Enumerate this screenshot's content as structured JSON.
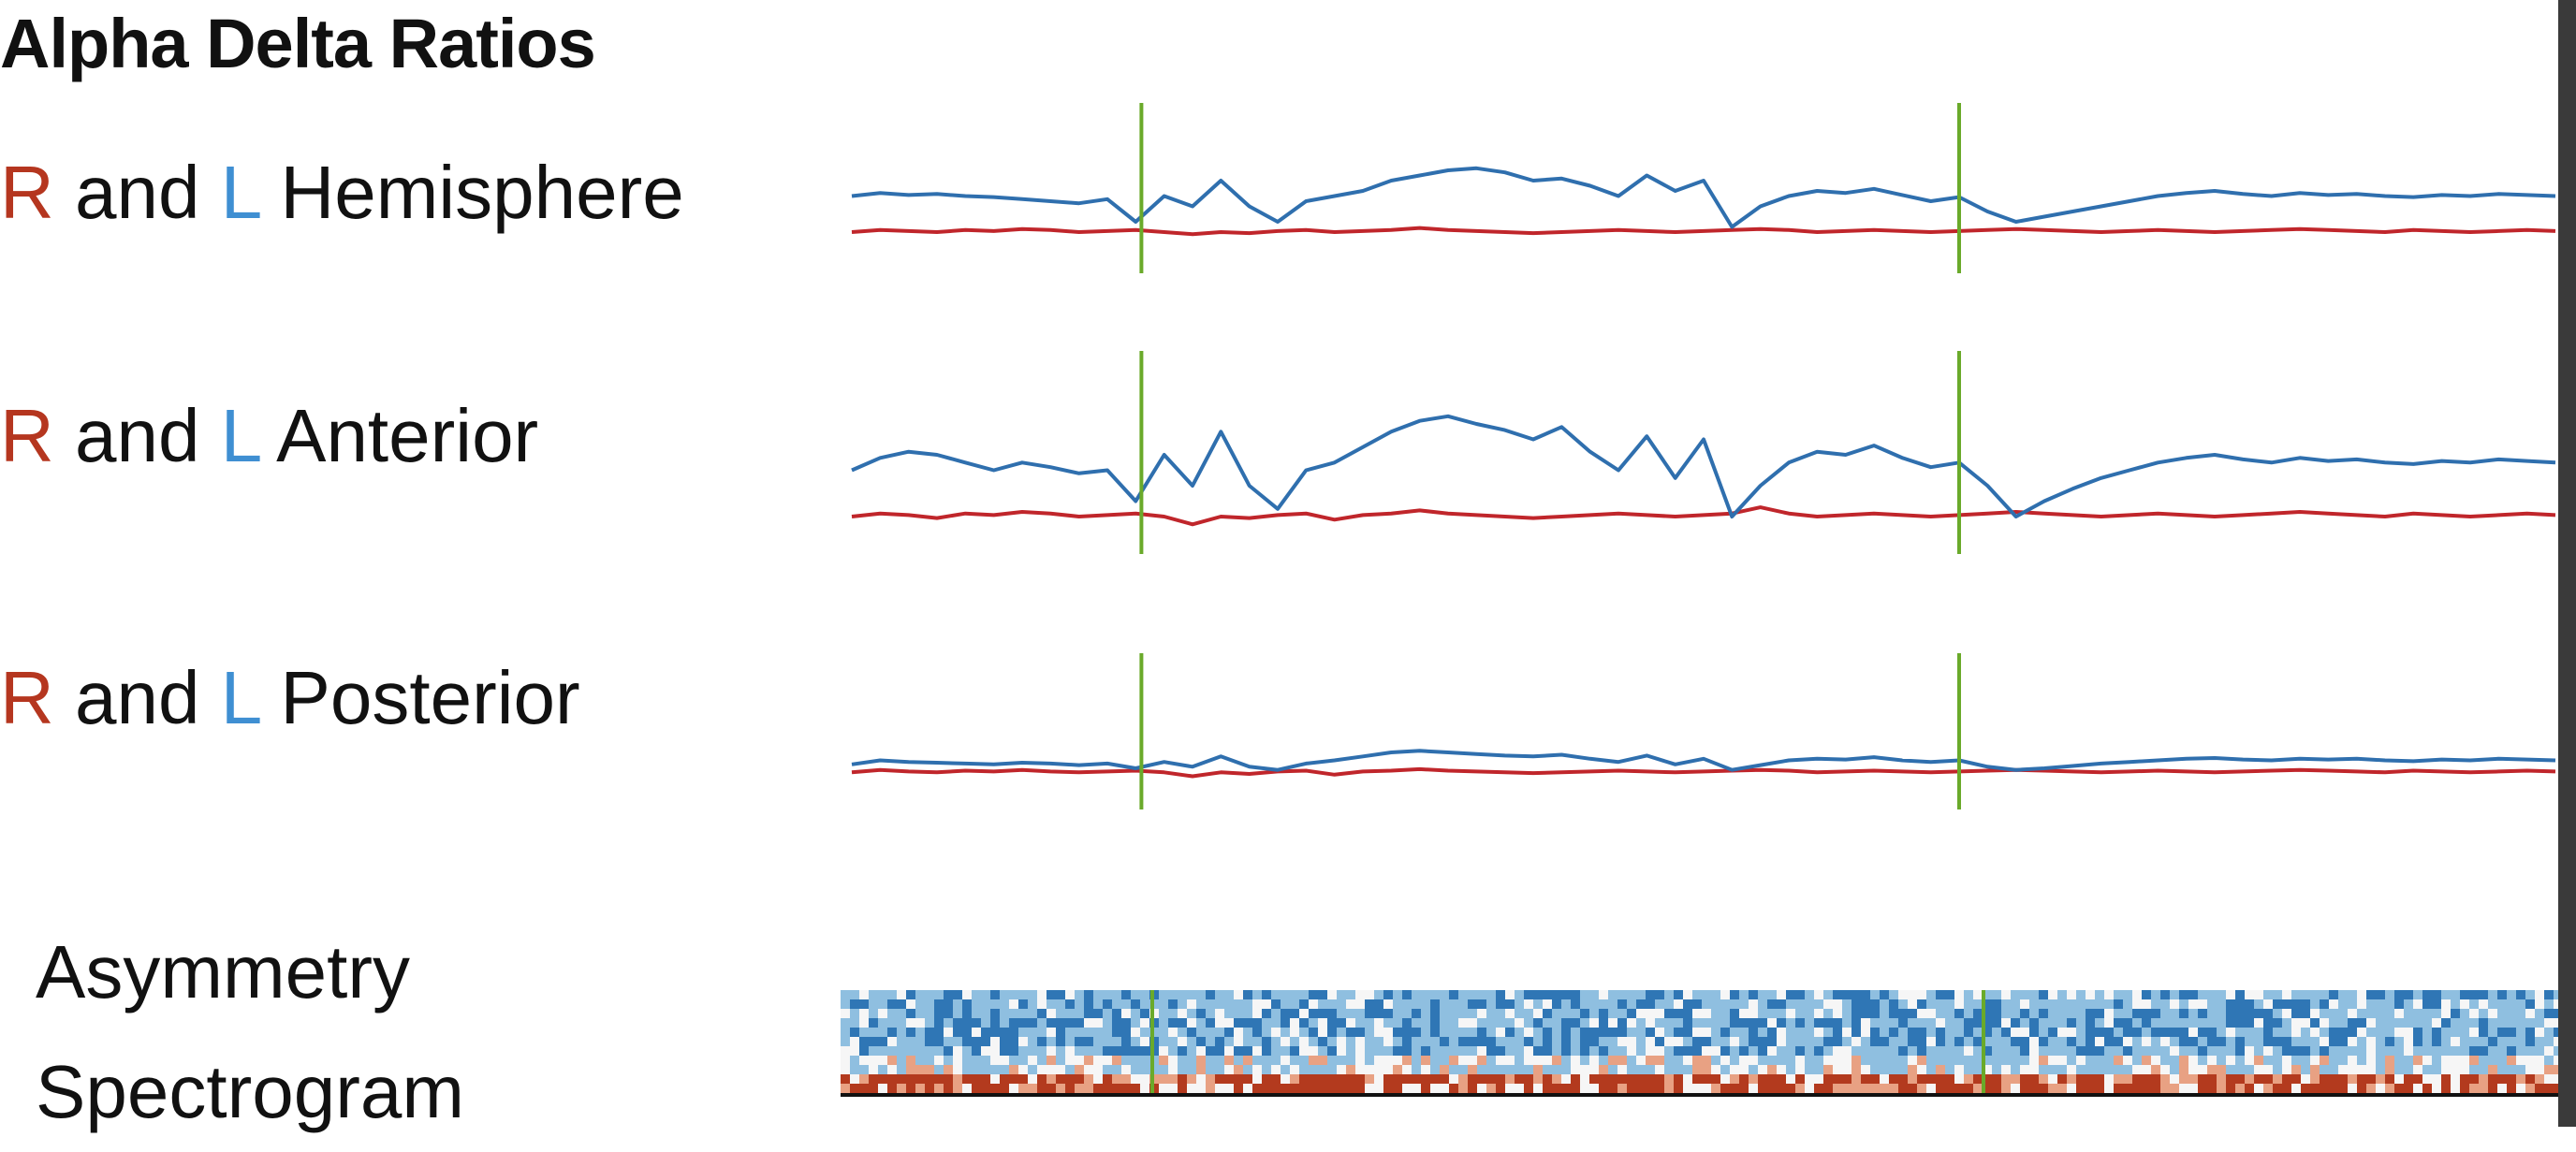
{
  "title": "Alpha Delta Ratios",
  "rows": [
    {
      "r": "R",
      "and": "and",
      "l": "L",
      "region": "Hemisphere"
    },
    {
      "r": "R",
      "and": "and",
      "l": "L",
      "region": "Anterior"
    },
    {
      "r": "R",
      "and": "and",
      "l": "L",
      "region": "Posterior"
    }
  ],
  "spectrogram_label": {
    "line1": "Asymmetry",
    "line2": "Spectrogram"
  },
  "colors": {
    "right": "#c0262b",
    "left": "#2f6fae",
    "marker": "#6aaa2a",
    "label_r": "#b5361f",
    "label_l": "#3f8fd2"
  },
  "chart_data": [
    {
      "type": "line",
      "title": "R and L Hemisphere",
      "series": [
        {
          "name": "R",
          "values": [
            0.2,
            0.22,
            0.21,
            0.2,
            0.22,
            0.21,
            0.23,
            0.22,
            0.2,
            0.21,
            0.22,
            0.2,
            0.18,
            0.2,
            0.19,
            0.21,
            0.22,
            0.2,
            0.21,
            0.22,
            0.24,
            0.22,
            0.21,
            0.2,
            0.19,
            0.2,
            0.21,
            0.22,
            0.21,
            0.2,
            0.21,
            0.22,
            0.23,
            0.22,
            0.2,
            0.21,
            0.22,
            0.21,
            0.2,
            0.21,
            0.22,
            0.23,
            0.22,
            0.21,
            0.2,
            0.21,
            0.22,
            0.21,
            0.2,
            0.21,
            0.22,
            0.23,
            0.22,
            0.21,
            0.2,
            0.22,
            0.21,
            0.2,
            0.21,
            0.22,
            0.21
          ]
        },
        {
          "name": "L",
          "values": [
            0.55,
            0.58,
            0.56,
            0.57,
            0.55,
            0.54,
            0.52,
            0.5,
            0.48,
            0.52,
            0.3,
            0.55,
            0.45,
            0.7,
            0.45,
            0.3,
            0.5,
            0.55,
            0.6,
            0.7,
            0.75,
            0.8,
            0.82,
            0.78,
            0.7,
            0.72,
            0.65,
            0.55,
            0.75,
            0.6,
            0.7,
            0.25,
            0.45,
            0.55,
            0.6,
            0.58,
            0.62,
            0.56,
            0.5,
            0.54,
            0.4,
            0.3,
            0.35,
            0.4,
            0.45,
            0.5,
            0.55,
            0.58,
            0.6,
            0.57,
            0.55,
            0.58,
            0.56,
            0.57,
            0.55,
            0.54,
            0.56,
            0.55,
            0.57,
            0.56,
            0.55
          ]
        }
      ],
      "markers_x": [
        0.17,
        0.65
      ]
    },
    {
      "type": "line",
      "title": "R and L Anterior",
      "series": [
        {
          "name": "R",
          "values": [
            0.2,
            0.22,
            0.21,
            0.19,
            0.22,
            0.21,
            0.23,
            0.22,
            0.2,
            0.21,
            0.22,
            0.2,
            0.15,
            0.2,
            0.19,
            0.21,
            0.22,
            0.18,
            0.21,
            0.22,
            0.24,
            0.22,
            0.21,
            0.2,
            0.19,
            0.2,
            0.21,
            0.22,
            0.21,
            0.2,
            0.21,
            0.22,
            0.26,
            0.22,
            0.2,
            0.21,
            0.22,
            0.21,
            0.2,
            0.21,
            0.22,
            0.23,
            0.22,
            0.21,
            0.2,
            0.21,
            0.22,
            0.21,
            0.2,
            0.21,
            0.22,
            0.23,
            0.22,
            0.21,
            0.2,
            0.22,
            0.21,
            0.2,
            0.21,
            0.22,
            0.21
          ]
        },
        {
          "name": "L",
          "values": [
            0.5,
            0.58,
            0.62,
            0.6,
            0.55,
            0.5,
            0.55,
            0.52,
            0.48,
            0.5,
            0.3,
            0.6,
            0.4,
            0.75,
            0.4,
            0.25,
            0.5,
            0.55,
            0.65,
            0.75,
            0.82,
            0.85,
            0.8,
            0.76,
            0.7,
            0.78,
            0.62,
            0.5,
            0.72,
            0.45,
            0.7,
            0.2,
            0.4,
            0.55,
            0.62,
            0.6,
            0.66,
            0.58,
            0.52,
            0.55,
            0.4,
            0.2,
            0.3,
            0.38,
            0.45,
            0.5,
            0.55,
            0.58,
            0.6,
            0.57,
            0.55,
            0.58,
            0.56,
            0.57,
            0.55,
            0.54,
            0.56,
            0.55,
            0.57,
            0.56,
            0.55
          ]
        }
      ],
      "markers_x": [
        0.17,
        0.65
      ]
    },
    {
      "type": "line",
      "title": "R and L Posterior",
      "series": [
        {
          "name": "R",
          "values": [
            0.35,
            0.38,
            0.36,
            0.35,
            0.37,
            0.36,
            0.38,
            0.36,
            0.35,
            0.36,
            0.37,
            0.35,
            0.3,
            0.35,
            0.33,
            0.36,
            0.37,
            0.32,
            0.36,
            0.37,
            0.39,
            0.37,
            0.36,
            0.35,
            0.34,
            0.35,
            0.36,
            0.37,
            0.36,
            0.35,
            0.36,
            0.37,
            0.38,
            0.37,
            0.35,
            0.36,
            0.37,
            0.36,
            0.35,
            0.36,
            0.37,
            0.38,
            0.37,
            0.36,
            0.35,
            0.36,
            0.37,
            0.36,
            0.35,
            0.36,
            0.37,
            0.38,
            0.37,
            0.36,
            0.35,
            0.37,
            0.36,
            0.35,
            0.36,
            0.37,
            0.36
          ]
        },
        {
          "name": "L",
          "values": [
            0.45,
            0.5,
            0.48,
            0.47,
            0.46,
            0.45,
            0.47,
            0.46,
            0.44,
            0.46,
            0.4,
            0.48,
            0.42,
            0.55,
            0.42,
            0.38,
            0.46,
            0.5,
            0.55,
            0.6,
            0.62,
            0.6,
            0.58,
            0.56,
            0.55,
            0.57,
            0.52,
            0.48,
            0.56,
            0.45,
            0.52,
            0.38,
            0.44,
            0.5,
            0.52,
            0.51,
            0.54,
            0.5,
            0.48,
            0.5,
            0.42,
            0.38,
            0.4,
            0.43,
            0.46,
            0.48,
            0.5,
            0.52,
            0.53,
            0.51,
            0.5,
            0.52,
            0.51,
            0.52,
            0.5,
            0.49,
            0.51,
            0.5,
            0.52,
            0.51,
            0.5
          ]
        }
      ],
      "markers_x": [
        0.17,
        0.65
      ]
    },
    {
      "type": "heatmap",
      "title": "Asymmetry Spectrogram",
      "palette": [
        "#b33a1e",
        "#e8a183",
        "#f6f6f6",
        "#8fbfe0",
        "#2f76b5"
      ],
      "markers_x": [
        0.18,
        0.66
      ]
    }
  ]
}
